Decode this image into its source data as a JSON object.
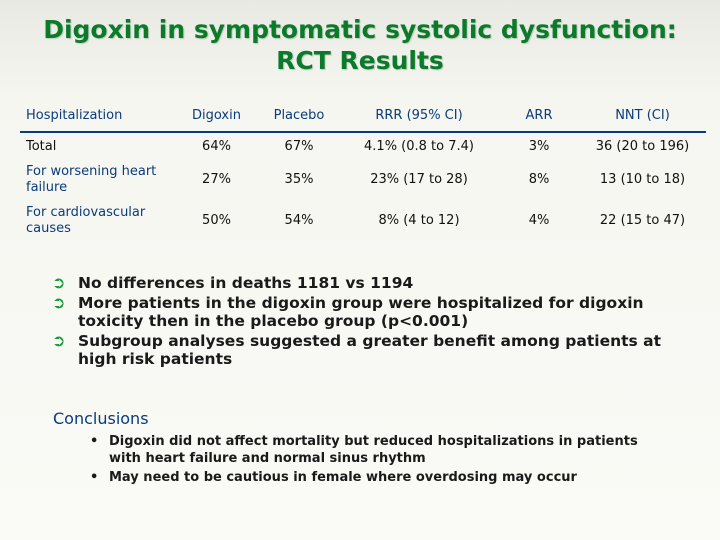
{
  "title": {
    "line1": "Digoxin in symptomatic systolic dysfunction:",
    "line2": "RCT Results"
  },
  "table": {
    "headers": [
      "Hospitalization",
      "Digoxin",
      "Placebo",
      "RRR (95% CI)",
      "ARR",
      "NNT (CI)"
    ],
    "rows": [
      [
        "Total",
        "64%",
        "67%",
        "4.1% (0.8 to 7.4)",
        "3%",
        "36 (20 to 196)"
      ],
      [
        "For worsening heart failure",
        "27%",
        "35%",
        "23% (17 to 28)",
        "8%",
        "13 (10 to 18)"
      ],
      [
        "For cardiovascular causes",
        "50%",
        "54%",
        "8% (4 to 12)",
        "4%",
        "22 (15 to 47)"
      ]
    ]
  },
  "bullets": [
    "No differences in deaths 1181 vs 1194",
    "More patients in the digoxin group were hospitalized for digoxin toxicity then in the placebo group (p<0.001)",
    "Subgroup analyses suggested a greater benefit among patients at high risk patients"
  ],
  "bullet_icon": "arrow-right-icon",
  "conclusions": {
    "title": "Conclusions",
    "items": [
      "Digoxin did not affect mortality but reduced hospitalizations in patients with heart failure and normal sinus rhythm",
      "May need to be cautious in female where overdosing may occur"
    ]
  },
  "colors": {
    "title": "#0b7a2b",
    "header": "#0a3b7a",
    "bullet_arrow": "#1d9a3c",
    "background": "#f6f6f1"
  }
}
